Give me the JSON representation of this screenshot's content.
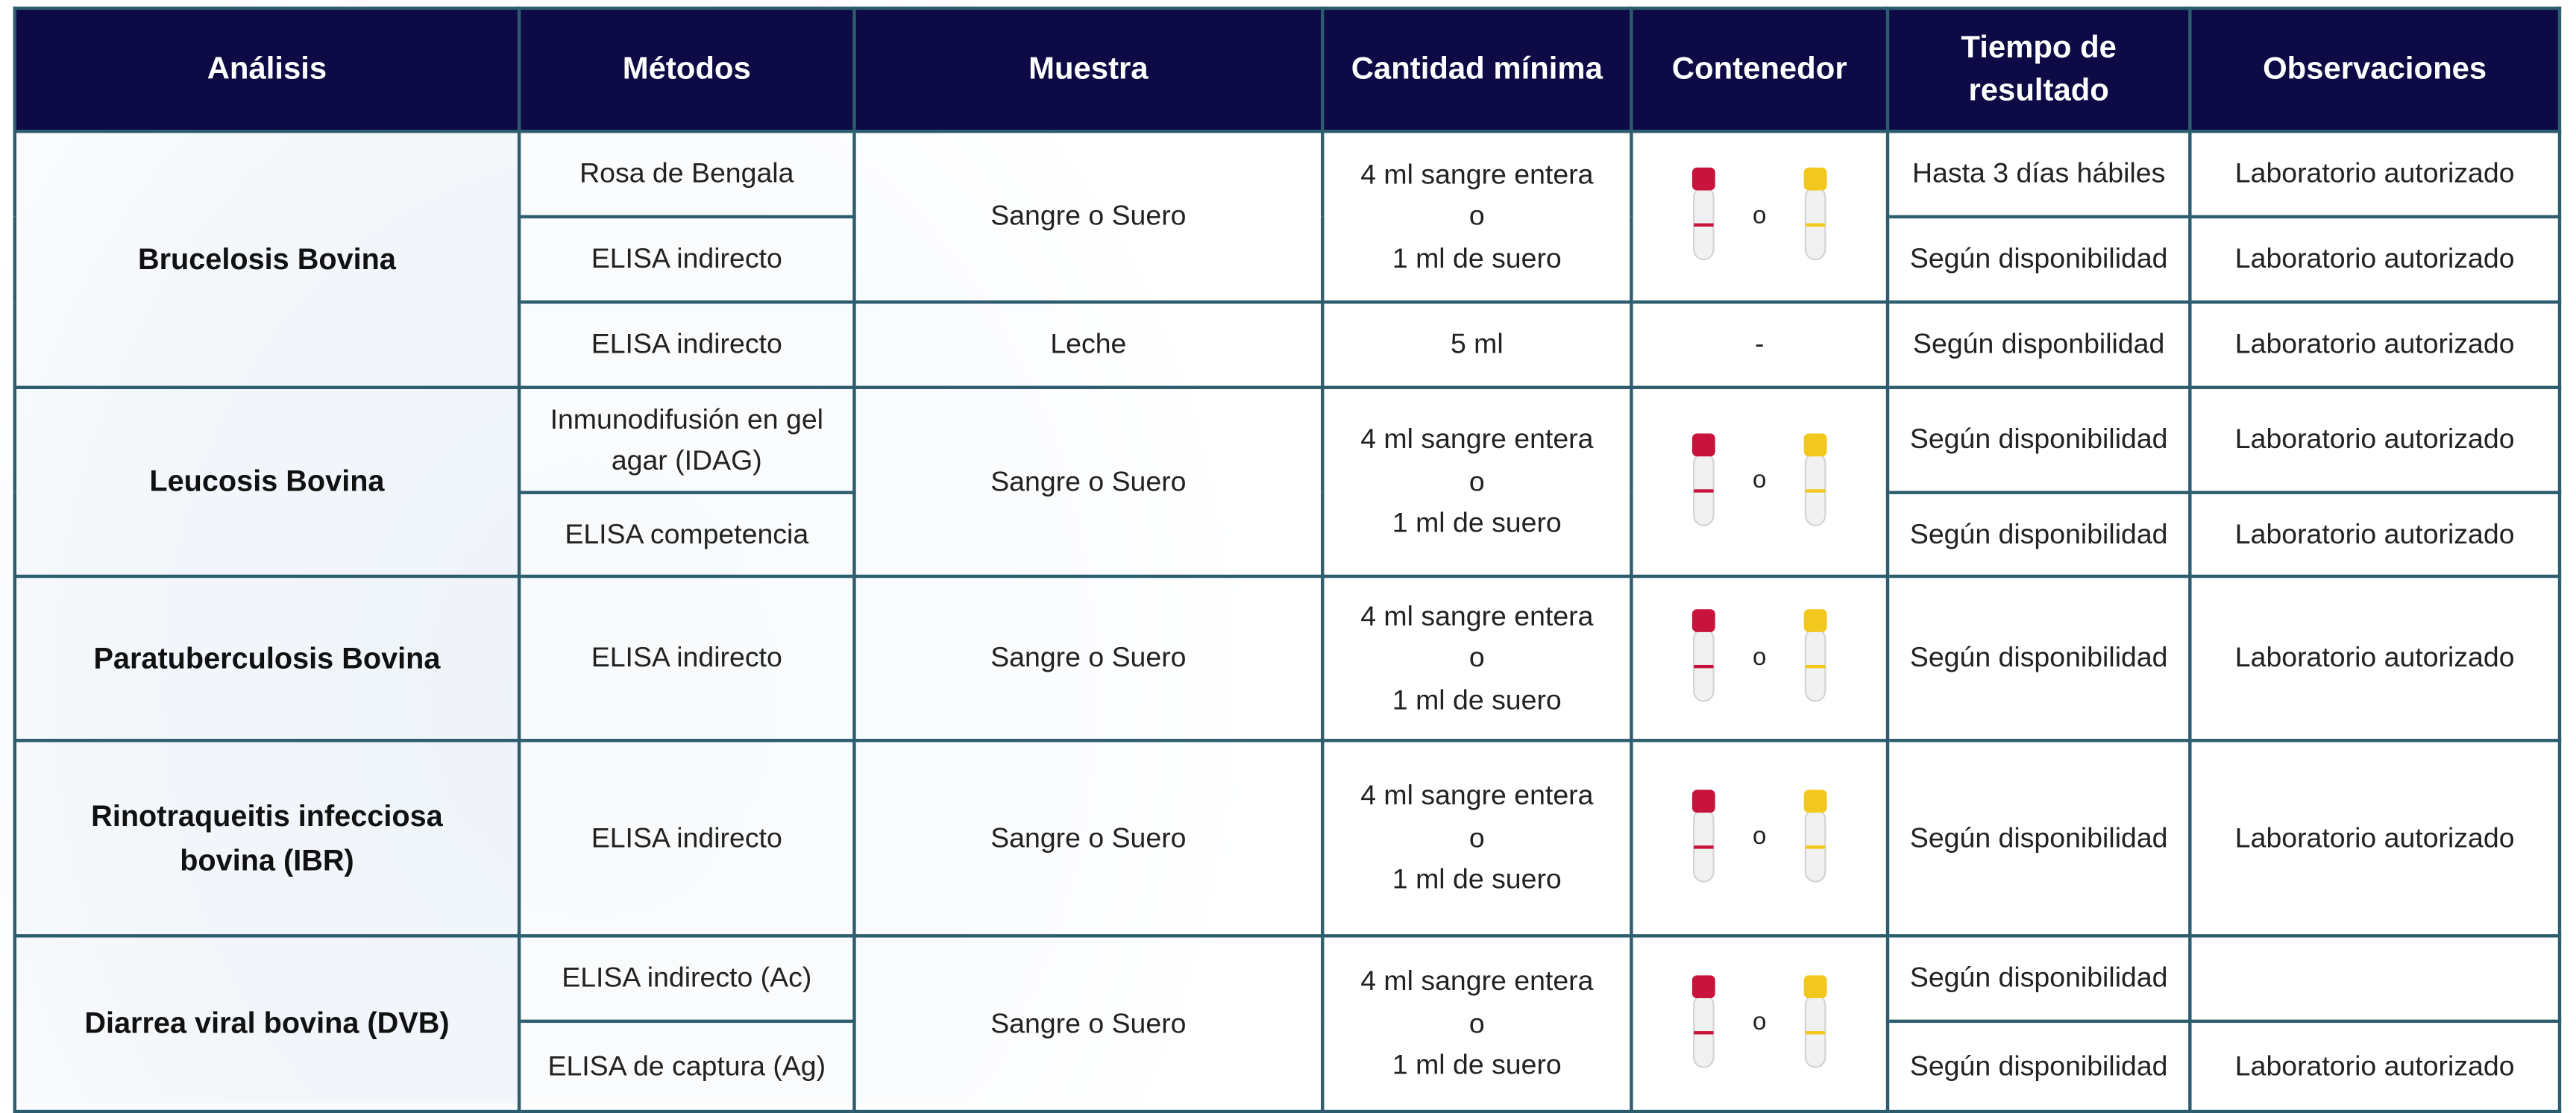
{
  "table": {
    "header": [
      "Análisis",
      "Métodos",
      "Muestra",
      "Cantidad mínima",
      "Contenedor",
      "Tiempo de\nresultado",
      "Observaciones"
    ],
    "rows": [
      [
        "Brucelosis Bovina",
        "Rosa de Bengala",
        "Sangre o Suero",
        "4 ml sangre entera\no\n1 ml de suero",
        "o",
        "Hasta 3 días hábiles",
        "Laboratorio autorizado"
      ],
      [
        "ELISA indirecto",
        "Según disponibilidad",
        "Laboratorio autorizado"
      ],
      [
        "ELISA indirecto",
        "Leche",
        "5 ml",
        "-",
        "Según disponbilidad",
        "Laboratorio autorizado"
      ],
      [
        "Leucosis Bovina",
        "Inmunodifusión en gel\nagar (IDAG)",
        "Sangre o Suero",
        "4 ml sangre entera\no\n1 ml de suero",
        "o",
        "Según disponibilidad",
        "Laboratorio autorizado"
      ],
      [
        "ELISA competencia",
        "Según disponibilidad",
        "Laboratorio autorizado"
      ],
      [
        "Paratuberculosis Bovina",
        "ELISA indirecto",
        "Sangre o Suero",
        "4 ml sangre entera\no\n1 ml de suero",
        "o",
        "Según disponibilidad",
        "Laboratorio autorizado"
      ],
      [
        "Rinotraqueitis infecciosa\nbovina (IBR)",
        "ELISA indirecto",
        "Sangre o Suero",
        "4 ml sangre entera\no\n1 ml de suero",
        "o",
        "Según disponibilidad",
        "Laboratorio autorizado"
      ],
      [
        "Diarrea viral bovina (DVB)",
        "ELISA indirecto (Ac)",
        "Sangre o Suero",
        "4 ml sangre entera\no\n1 ml de suero",
        "o",
        "Según disponibilidad"
      ],
      [
        "ELISA de captura (Ag)",
        "Según disponibilidad",
        "Laboratorio autorizado"
      ]
    ]
  }
}
